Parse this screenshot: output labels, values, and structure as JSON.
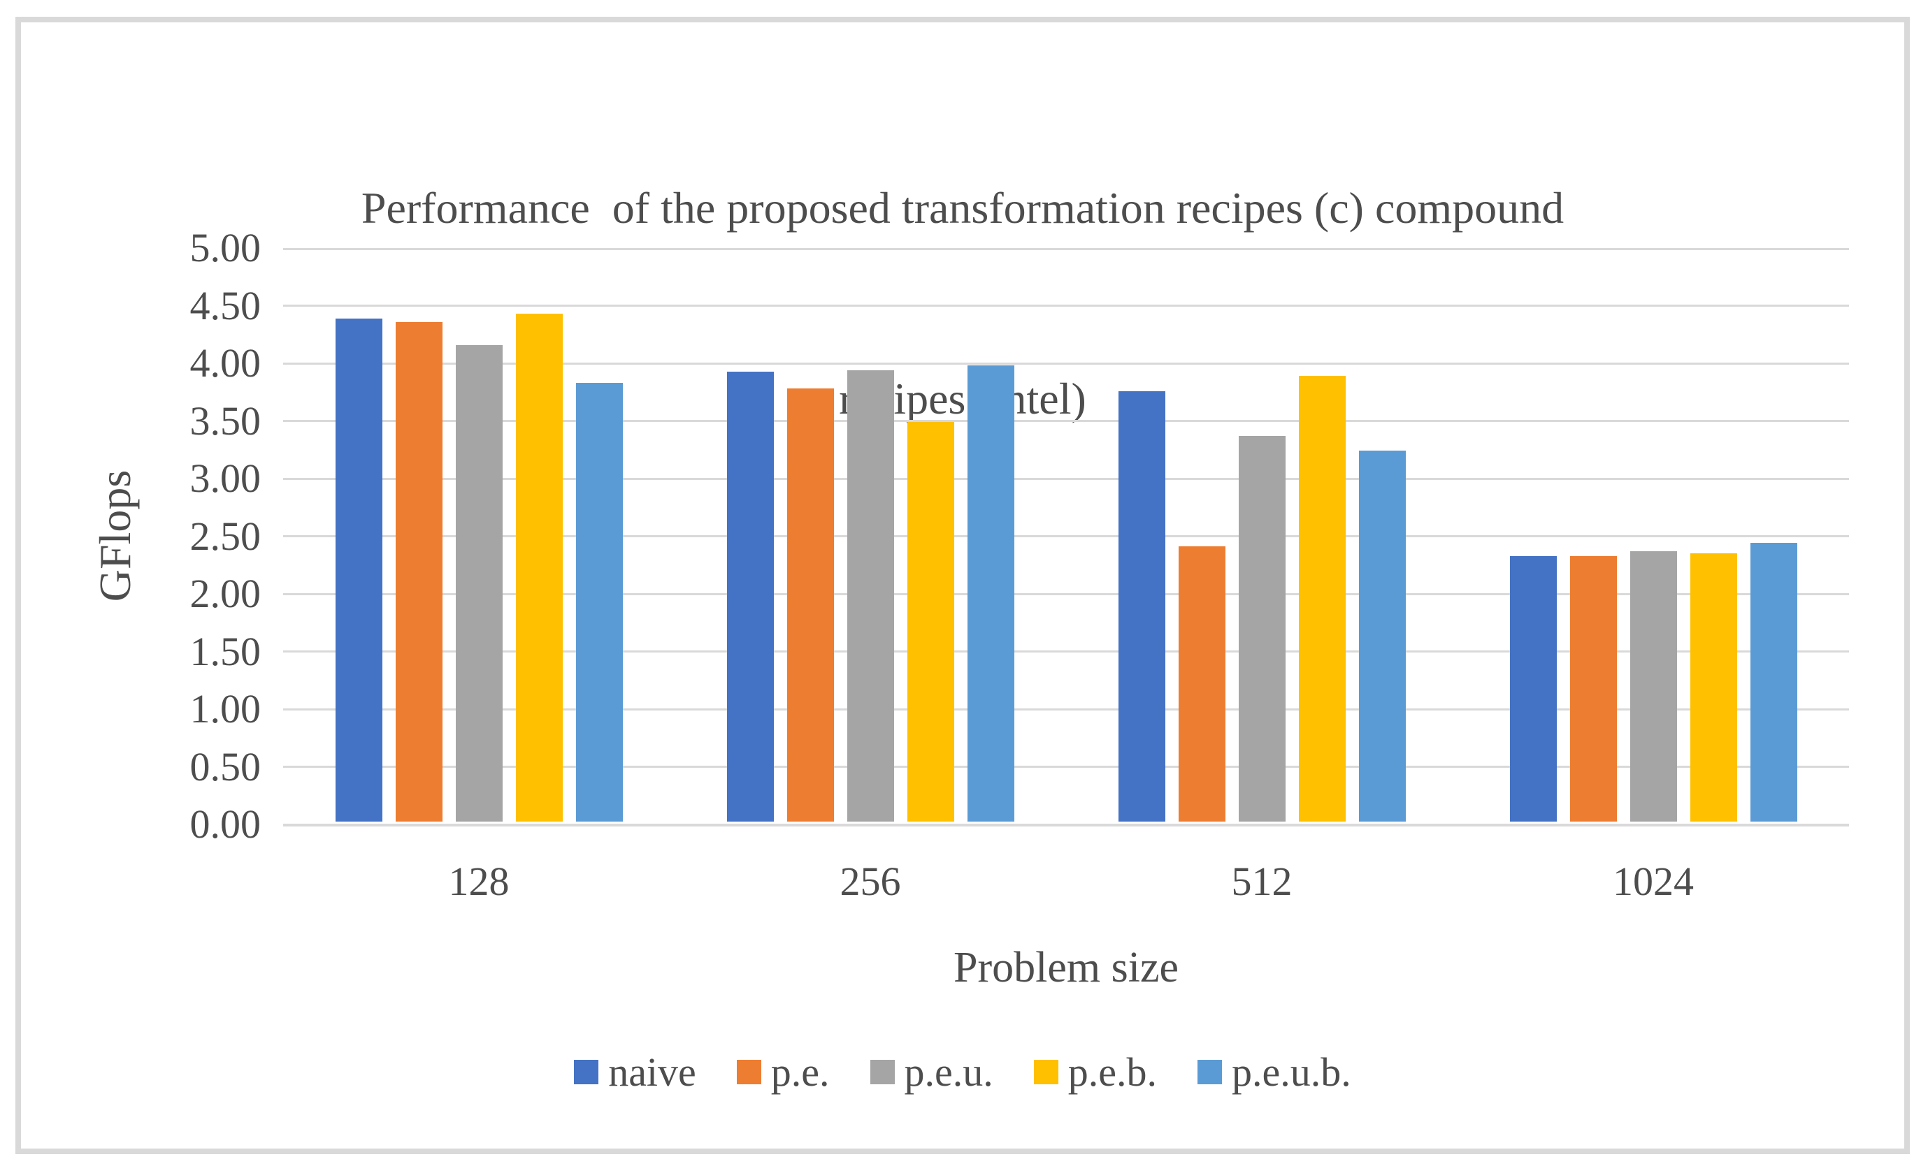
{
  "figure": {
    "background": "#FFFFFF",
    "border_color": "#D9D9D9",
    "text_color": "#4D4D4D"
  },
  "chart_data": {
    "type": "bar",
    "title": "Performance  of the proposed transformation recipes (c) compound recipes (intel)",
    "title_lines": [
      "Performance  of the proposed transformation recipes (c) compound",
      "recipes (intel)"
    ],
    "xlabel": "Problem size",
    "ylabel": "GFlops",
    "categories": [
      "128",
      "256",
      "512",
      "1024"
    ],
    "series": [
      {
        "name": "naive",
        "color": "#4472C4",
        "values": [
          4.39,
          3.93,
          3.76,
          2.33
        ]
      },
      {
        "name": "p.e.",
        "color": "#ED7D31",
        "values": [
          4.36,
          3.78,
          2.41,
          2.33
        ]
      },
      {
        "name": "p.e.u.",
        "color": "#A5A5A5",
        "values": [
          4.16,
          3.94,
          3.37,
          2.37
        ]
      },
      {
        "name": "p.e.b.",
        "color": "#FFC000",
        "values": [
          4.43,
          3.49,
          3.89,
          2.35
        ]
      },
      {
        "name": "p.e.u.b.",
        "color": "#5B9BD5",
        "values": [
          3.83,
          3.98,
          3.24,
          2.44
        ]
      }
    ],
    "ylim": [
      0,
      5
    ],
    "ytick_step": 0.5,
    "ytick_labels": [
      "5.00",
      "4.50",
      "4.00",
      "3.50",
      "3.00",
      "2.50",
      "2.00",
      "1.50",
      "1.00",
      "0.50",
      "0.00"
    ],
    "grid": true,
    "gridline_color": "#D9D9D9",
    "legend_position": "bottom",
    "legend_labels": [
      "naive",
      "p.e.",
      "p.e.u.",
      "p.e.b.",
      "p.e.u.b."
    ]
  }
}
